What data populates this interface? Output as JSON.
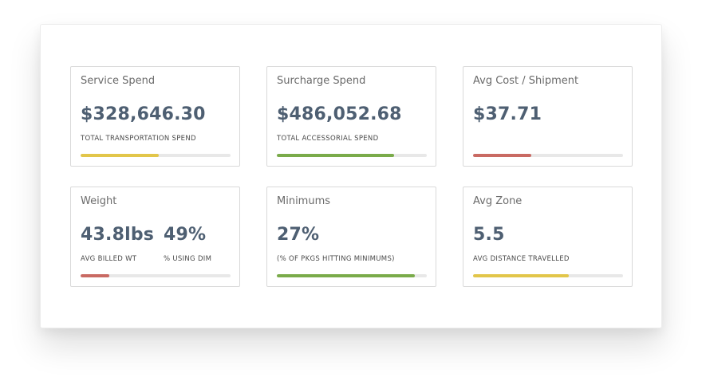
{
  "cards": [
    {
      "title": "Service Spend",
      "metrics": [
        {
          "value": "$328,646.30",
          "label": "TOTAL TRANSPORTATION SPEND"
        }
      ],
      "progress": 0.52,
      "bar_color": "#e2c64a"
    },
    {
      "title": "Surcharge Spend",
      "metrics": [
        {
          "value": "$486,052.68",
          "label": "TOTAL ACCESSORIAL SPEND"
        }
      ],
      "progress": 0.78,
      "bar_color": "#7aab4a"
    },
    {
      "title": "Avg Cost / Shipment",
      "metrics": [
        {
          "value": "$37.71",
          "label": ""
        }
      ],
      "progress": 0.39,
      "bar_color": "#c96a63"
    },
    {
      "title": "Weight",
      "metrics": [
        {
          "value": "43.8lbs",
          "label": "AVG BILLED WT"
        },
        {
          "value": "49%",
          "label": "% USING DIM"
        }
      ],
      "progress": 0.19,
      "bar_color": "#c96a63"
    },
    {
      "title": "Minimums",
      "metrics": [
        {
          "value": "27%",
          "label": "(% OF PKGS HITTING MINIMUMS)"
        }
      ],
      "progress": 0.92,
      "bar_color": "#7aab4a"
    },
    {
      "title": "Avg Zone",
      "metrics": [
        {
          "value": "5.5",
          "label": "AVG DISTANCE TRAVELLED"
        }
      ],
      "progress": 0.64,
      "bar_color": "#e2c64a"
    }
  ]
}
